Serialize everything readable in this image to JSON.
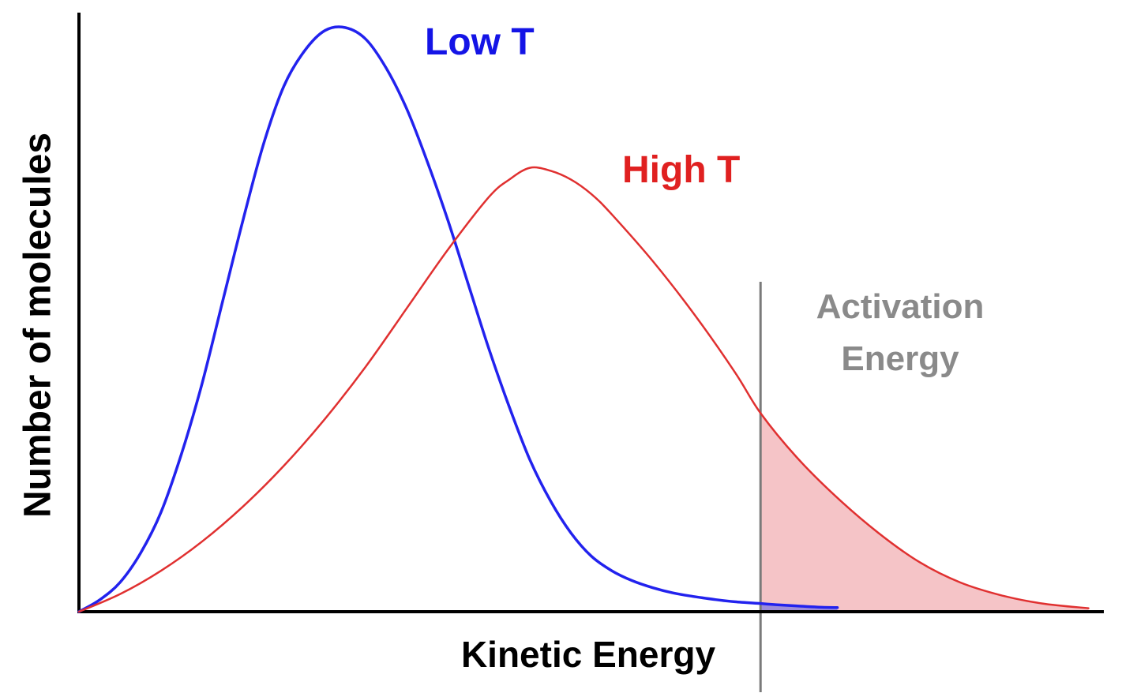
{
  "labels": {
    "low_t": "Low T",
    "high_t": "High T",
    "activation_energy": "Activation\nEnergy",
    "x_axis": "Kinetic Energy",
    "y_axis": "Number of molecules"
  },
  "colors": {
    "low_t_curve": "#2222ee",
    "high_t_curve": "#e03030",
    "low_t_fill": "rgba(70,85,235,0.50)",
    "high_t_fill": "rgba(225,70,80,0.32)",
    "activation_line": "#7a7a7a",
    "axis": "#000000",
    "low_t_label": "#1414e6",
    "high_t_label": "#e02020",
    "activation_label": "#8a8a8a"
  },
  "chart_data": {
    "type": "line",
    "xlabel": "Kinetic Energy",
    "ylabel": "Number of molecules",
    "x_range": [
      0,
      100
    ],
    "ylim": [
      0,
      100
    ],
    "axis_ticks": "none (unlabeled qualitative axes)",
    "grid": false,
    "legend_position": "inline curve labels",
    "activation_energy_x": 66.5,
    "series": [
      {
        "name": "Low T",
        "color": "#2222ee",
        "x": [
          0,
          2,
          4,
          6,
          8,
          10,
          12,
          14,
          16,
          18,
          20,
          22,
          24,
          26,
          28,
          30,
          32,
          34,
          36,
          38,
          40,
          42,
          44,
          46,
          48,
          50,
          52,
          54,
          56,
          58,
          60,
          62,
          64,
          66.5,
          68,
          70,
          72,
          74
        ],
        "y": [
          0,
          2,
          5,
          10,
          17,
          27,
          39,
          53,
          67,
          80,
          90,
          96,
          99.5,
          100,
          98,
          93,
          86,
          77,
          67,
          56,
          45,
          35,
          26,
          19,
          13.5,
          9.5,
          7,
          5.3,
          4.1,
          3.2,
          2.6,
          2.1,
          1.7,
          1.4,
          1.2,
          1.0,
          0.8,
          0.7
        ]
      },
      {
        "name": "High T",
        "color": "#e03030",
        "x": [
          0,
          4,
          8,
          12,
          16,
          20,
          24,
          28,
          32,
          36,
          40,
          42,
          44,
          46,
          48,
          50,
          52,
          56,
          60,
          64,
          66.5,
          70,
          74,
          78,
          82,
          86,
          90,
          94,
          98.5
        ],
        "y": [
          0,
          3,
          7,
          12,
          18,
          25,
          33,
          42,
          52,
          62,
          71,
          74,
          76,
          75.5,
          74,
          71.5,
          68,
          60,
          51,
          41,
          34,
          26.5,
          19.5,
          13.5,
          8.5,
          5,
          2.8,
          1.4,
          0.6
        ]
      }
    ],
    "shaded_regions": [
      {
        "series": "Low T",
        "from_x": 66.5,
        "to_x": 74
      },
      {
        "series": "High T",
        "from_x": 66.5,
        "to_x": 98.5
      }
    ],
    "annotations": [
      {
        "text": "Activation\nEnergy",
        "type": "vertical-line",
        "x": 66.5
      }
    ]
  }
}
